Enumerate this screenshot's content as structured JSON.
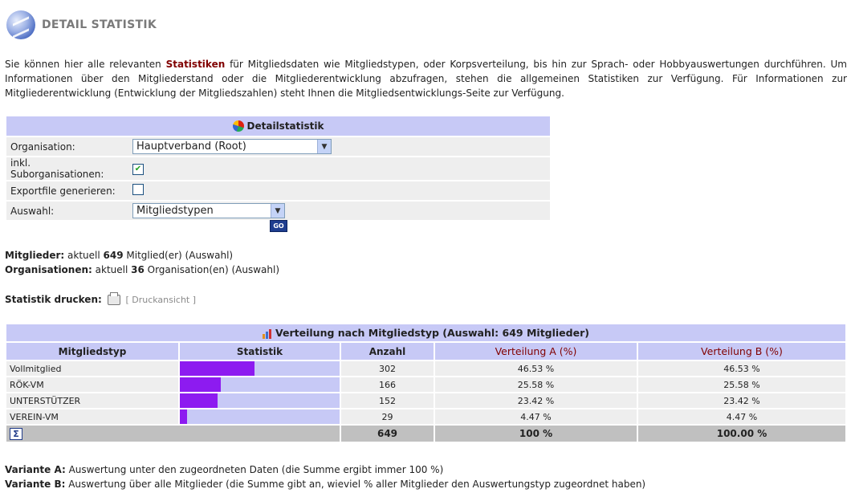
{
  "header": {
    "title": "DETAIL STATISTIK"
  },
  "intro": {
    "part1": "Sie können hier alle relevanten ",
    "keyword": "Statistiken",
    "part2": " für Mitgliedsdaten wie Mitgliedstypen, oder Korpsverteilung, bis hin zur Sprach- oder Hobbyauswertungen durchführen. Um Informationen über den Mitgliederstand oder die Mitgliederentwicklung abzufragen, stehen die allgemeinen Statistiken zur Verfügung. Für Informationen zur Mitgliederentwicklung (Entwicklung der Mitgliedszahlen) steht Ihnen die Mitgliedsentwicklungs-Seite zur Verfügung."
  },
  "form": {
    "title": "Detailstatistik",
    "organisation_label": "Organisation:",
    "organisation_value": "Hauptverband (Root)",
    "suborg_label": "inkl. Suborganisationen:",
    "suborg_checked": true,
    "export_label": "Exportfile generieren:",
    "export_checked": false,
    "auswahl_label": "Auswahl:",
    "auswahl_value": "Mitgliedstypen",
    "go_label": "GO"
  },
  "summary": {
    "mitglieder_label": "Mitglieder:",
    "mitglieder_pre": " aktuell ",
    "mitglieder_count": "649",
    "mitglieder_post": " Mitglied(er) (Auswahl)",
    "org_label": "Organisationen:",
    "org_pre": " aktuell ",
    "org_count": "36",
    "org_post": " Organisation(en) (Auswahl)",
    "print_label": "Statistik drucken:",
    "print_link": "[ Druckansicht ]"
  },
  "table": {
    "caption": "Verteilung nach Mitgliedstyp (Auswahl: 649 Mitglieder)",
    "headers": [
      "Mitgliedstyp",
      "Statistik",
      "Anzahl",
      "Verteilung A (%)",
      "Verteilung B (%)"
    ],
    "rows": [
      {
        "type": "Vollmitglied",
        "share": 0.4653,
        "count": "302",
        "a": "46.53 %",
        "b": "46.53 %"
      },
      {
        "type": "RÖK-VM",
        "share": 0.2558,
        "count": "166",
        "a": "25.58 %",
        "b": "25.58 %"
      },
      {
        "type": "UNTERSTÜTZER",
        "share": 0.2342,
        "count": "152",
        "a": "23.42 %",
        "b": "23.42 %"
      },
      {
        "type": "VEREIN-VM",
        "share": 0.0447,
        "count": "29",
        "a": "4.47 %",
        "b": "4.47 %"
      }
    ],
    "sum": {
      "symbol": "Σ",
      "count": "649",
      "a": "100 %",
      "b": "100.00 %"
    },
    "bar_color": "#8d1bf0",
    "bar_track_color": "#c7c9f6"
  },
  "footnotes": {
    "a_label": "Variante A:",
    "a_text": " Auswertung unter den zugeordneten Daten (die Summe ergibt immer 100 %)",
    "b_label": "Variante B:",
    "b_text": " Auswertung über alle Mitglieder (die Summe gibt an, wieviel % aller Mitglieder den Auswertungstyp zugeordnet haben)"
  }
}
